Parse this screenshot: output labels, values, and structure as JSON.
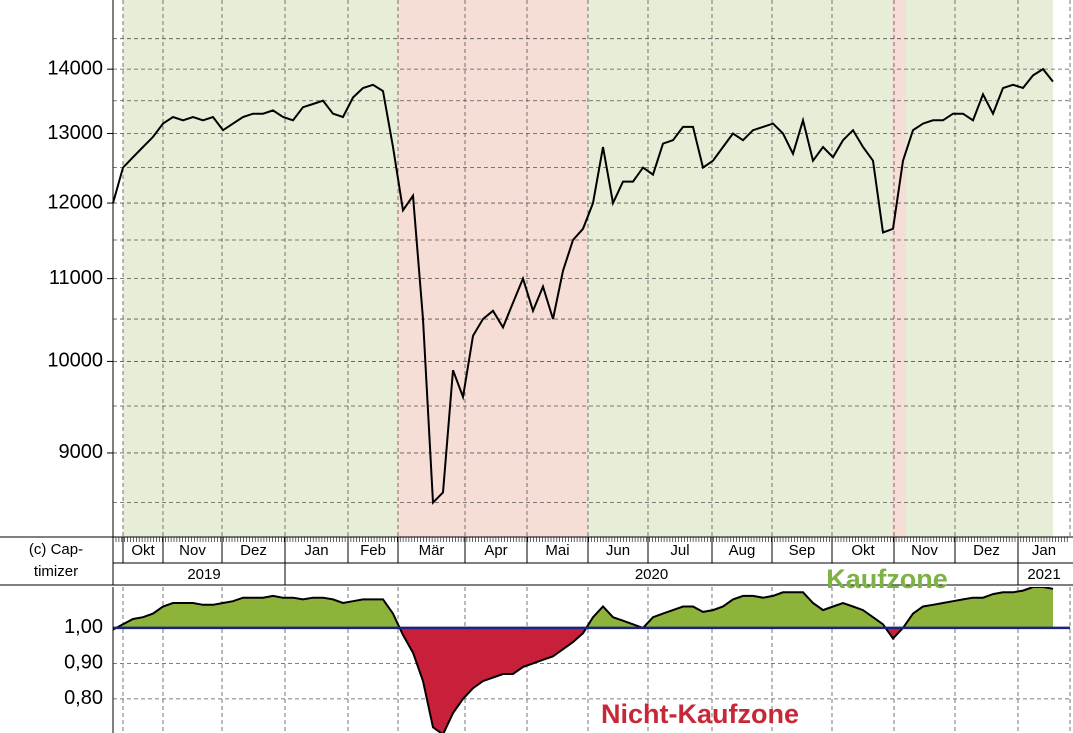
{
  "chart_data": [
    {
      "type": "line",
      "log_y": true,
      "color": "#000000",
      "ylim": [
        8170,
        15160
      ],
      "yticks": [
        9000,
        10000,
        11000,
        12000,
        13000,
        14000
      ],
      "ygrid_minor": [
        8500,
        9500,
        10500,
        11500,
        12500,
        13500,
        14500
      ],
      "xlim": [
        0,
        95.7
      ],
      "zones": [
        {
          "color": "#e6eed8",
          "start": 1,
          "end": 28.5
        },
        {
          "color": "#f6ddd6",
          "start": 28.5,
          "end": 47.5
        },
        {
          "color": "#e6eed8",
          "start": 47.5,
          "end": 77.9
        },
        {
          "color": "#f6ddd6",
          "start": 77.9,
          "end": 79.3
        },
        {
          "color": "#e6eed8",
          "start": 79.3,
          "end": 94
        }
      ],
      "values": [
        12000,
        12500,
        12650,
        12800,
        12950,
        13150,
        13250,
        13200,
        13250,
        13200,
        13250,
        13050,
        13150,
        13250,
        13300,
        13300,
        13350,
        13250,
        13200,
        13400,
        13450,
        13500,
        13300,
        13250,
        13550,
        13700,
        13750,
        13650,
        12800,
        11900,
        12100,
        10500,
        8500,
        8600,
        9900,
        9600,
        10300,
        10500,
        10600,
        10400,
        10700,
        11000,
        10600,
        10900,
        10500,
        11100,
        11500,
        11650,
        12000,
        12800,
        12000,
        12300,
        12300,
        12500,
        12400,
        12850,
        12900,
        13100,
        13100,
        12500,
        12600,
        12800,
        13000,
        12900,
        13050,
        13100,
        13150,
        13000,
        12700,
        13200,
        12600,
        12800,
        12650,
        12900,
        13050,
        12800,
        12600,
        11600,
        11650,
        12600,
        13050,
        13150,
        13200,
        13200,
        13300,
        13300,
        13200,
        13600,
        13300,
        13700,
        13750,
        13700,
        13900,
        14000,
        13800
      ],
      "corner_label": [
        "(c) Cap-",
        "timizer"
      ],
      "months": [
        "Okt",
        "Nov",
        "Dez",
        "Jan",
        "Feb",
        "Mär",
        "Apr",
        "Mai",
        "Jun",
        "Jul",
        "Aug",
        "Sep",
        "Okt",
        "Nov",
        "Dez",
        "Jan"
      ],
      "month_edges": [
        1,
        5,
        10.9,
        17.2,
        23.5,
        28.5,
        35.2,
        41.4,
        47.5,
        53.5,
        59.9,
        65.9,
        71.9,
        78.1,
        84.2,
        90.5,
        95.7
      ],
      "years": [
        "2019",
        "2020",
        "2021"
      ],
      "year_edges": [
        0,
        17.2,
        90.5,
        95.7
      ]
    },
    {
      "type": "area",
      "baseline": 1.0,
      "color_above": "#8db33a",
      "color_below": "#c8203a",
      "baseline_color": "#1a237e",
      "ylim": [
        0.704,
        1.115
      ],
      "xlim": [
        0,
        95.7
      ],
      "yticks": [
        {
          "value": 0.8,
          "label": "0,80"
        },
        {
          "value": 0.9,
          "label": "0,90"
        },
        {
          "value": 1.0,
          "label": "1,00"
        }
      ],
      "values": [
        0.995,
        1.01,
        1.025,
        1.03,
        1.04,
        1.06,
        1.07,
        1.07,
        1.07,
        1.065,
        1.065,
        1.07,
        1.075,
        1.085,
        1.085,
        1.085,
        1.09,
        1.085,
        1.085,
        1.08,
        1.085,
        1.085,
        1.08,
        1.07,
        1.075,
        1.08,
        1.08,
        1.08,
        1.04,
        0.98,
        0.93,
        0.85,
        0.72,
        0.7,
        0.76,
        0.8,
        0.83,
        0.85,
        0.86,
        0.87,
        0.87,
        0.89,
        0.9,
        0.91,
        0.92,
        0.94,
        0.96,
        0.985,
        1.03,
        1.06,
        1.03,
        1.02,
        1.01,
        1.0,
        1.03,
        1.04,
        1.05,
        1.06,
        1.06,
        1.045,
        1.05,
        1.06,
        1.08,
        1.09,
        1.09,
        1.085,
        1.09,
        1.1,
        1.1,
        1.1,
        1.07,
        1.05,
        1.06,
        1.07,
        1.06,
        1.05,
        1.03,
        1.01,
        0.97,
        1.0,
        1.04,
        1.06,
        1.065,
        1.07,
        1.075,
        1.08,
        1.085,
        1.085,
        1.095,
        1.1,
        1.1,
        1.105,
        1.115,
        1.115,
        1.11
      ],
      "annotations": [
        {
          "text": "Kaufzone",
          "color": "#7cb342"
        },
        {
          "text": "Nicht-Kaufzone",
          "color": "#c62838"
        }
      ]
    }
  ]
}
